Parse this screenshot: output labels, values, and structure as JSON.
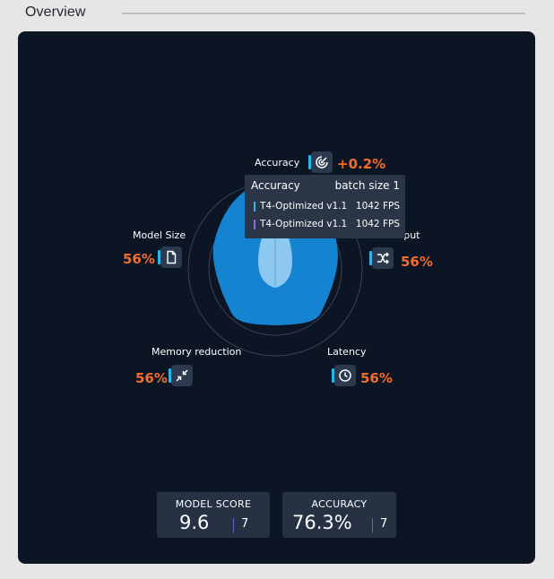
{
  "header": {
    "title": "Overview"
  },
  "colors": {
    "accent": "#f26c2d",
    "panel": "#0c1524",
    "radar_fill": "#1584d0",
    "radar_inner": "#8cc8ef",
    "icon_bar": "#29b6e8"
  },
  "radar": {
    "axes": [
      {
        "label": "Accuracy",
        "value": "+0.2%",
        "icon": "target-icon"
      },
      {
        "label": "Input",
        "value": "56%",
        "icon": "shuffle-icon"
      },
      {
        "label": "Latency",
        "value": "56%",
        "icon": "clock-icon"
      },
      {
        "label": "Memory reduction",
        "value": "56%",
        "icon": "compress-icon"
      },
      {
        "label": "Model Size",
        "value": "56%",
        "icon": "file-icon"
      }
    ]
  },
  "tooltip": {
    "title": "Accuracy",
    "batch": "batch size 1",
    "rows": [
      {
        "name": "T4-Optimized v1.1",
        "value": "1042 FPS",
        "color": "#29b6e8"
      },
      {
        "name": "T4-Optimized v1.1",
        "value": "1042 FPS",
        "color": "#8a6fd8"
      }
    ]
  },
  "stats": [
    {
      "label": "MODEL SCORE",
      "value": "9.6",
      "count": "7"
    },
    {
      "label": "ACCURACY",
      "value": "76.3%",
      "count": "7"
    }
  ]
}
